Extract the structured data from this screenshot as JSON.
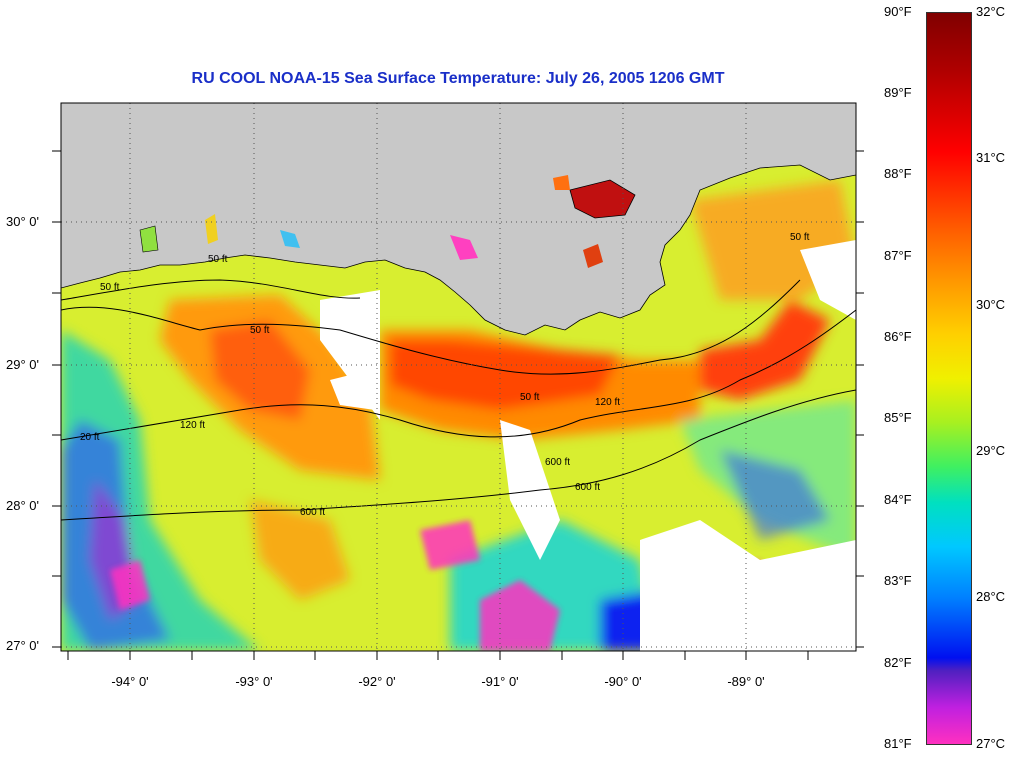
{
  "title": "RU COOL  NOAA-15  Sea Surface Temperature:  July 26, 2005 1206 GMT",
  "lat_labels": [
    "30° 0'",
    "29° 0'",
    "28° 0'",
    "27° 0'"
  ],
  "lon_labels": [
    "-94° 0'",
    "-93° 0'",
    "-92° 0'",
    "-91° 0'",
    "-90° 0'",
    "-89° 0'"
  ],
  "isobath_labels": [
    "50 ft",
    "50 ft",
    "50 ft",
    "50 ft",
    "50 ft",
    "120 ft",
    "120 ft",
    "600 ft",
    "600 ft",
    "600 ft",
    "20 ft"
  ],
  "colorbar": {
    "fahrenheit_labels": [
      "90°F",
      "89°F",
      "88°F",
      "87°F",
      "86°F",
      "85°F",
      "84°F",
      "83°F",
      "82°F",
      "81°F"
    ],
    "celsius_labels": [
      "32°C",
      "31°C",
      "30°C",
      "29°C",
      "28°C",
      "27°C"
    ]
  },
  "colors": {
    "title": "#1a2fc8",
    "land": "#c8c8c8",
    "cloud_mask": "#ffffff",
    "sst_hot": "#c00000",
    "sst_warm": "#ff9000",
    "sst_mid": "#f0f000",
    "sst_cool": "#00d8c0",
    "sst_cold": "#1010e0",
    "sst_coldest": "#ff30c0"
  }
}
